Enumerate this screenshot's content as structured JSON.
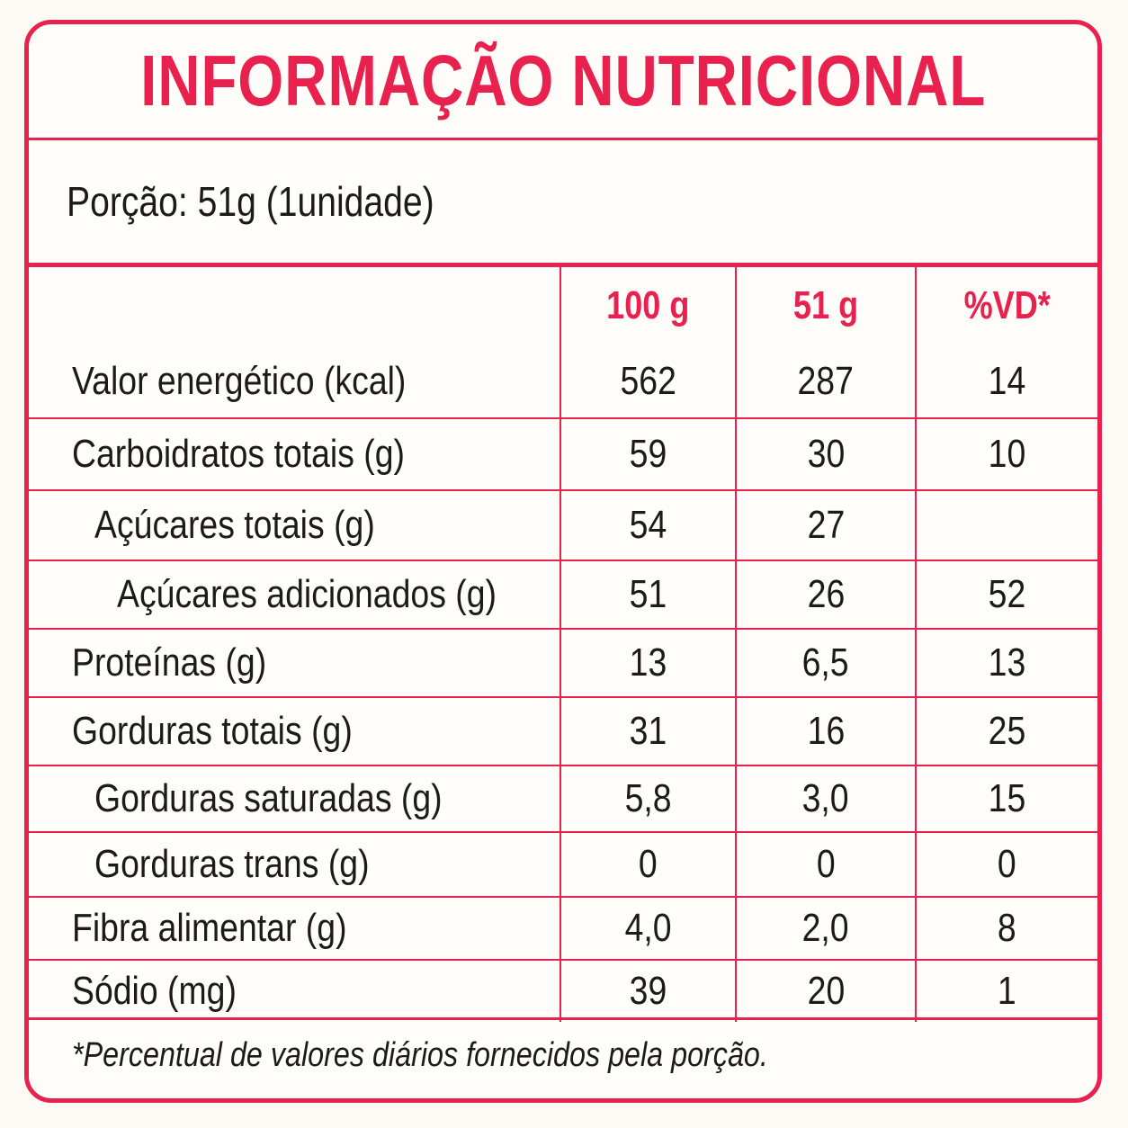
{
  "title": "INFORMAÇÃO NUTRICIONAL",
  "serving": "Porção: 51g (1unidade)",
  "headers": [
    "100 g",
    "51 g",
    "%VD*"
  ],
  "rows": [
    {
      "name": "Valor energético (kcal)",
      "per100": "562",
      "perServing": "287",
      "vd": "14",
      "indent": 0
    },
    {
      "name": "Carboidratos totais (g)",
      "per100": "59",
      "perServing": "30",
      "vd": "10",
      "indent": 0
    },
    {
      "name": "Açúcares totais (g)",
      "per100": "54",
      "perServing": "27",
      "vd": "",
      "indent": 1
    },
    {
      "name": "Açúcares adicionados (g)",
      "per100": "51",
      "perServing": "26",
      "vd": "52",
      "indent": 2
    },
    {
      "name": "Proteínas (g)",
      "per100": "13",
      "perServing": "6,5",
      "vd": "13",
      "indent": 0
    },
    {
      "name": "Gorduras totais (g)",
      "per100": "31",
      "perServing": "16",
      "vd": "25",
      "indent": 0
    },
    {
      "name": "Gorduras saturadas (g)",
      "per100": "5,8",
      "perServing": "3,0",
      "vd": "15",
      "indent": 1
    },
    {
      "name": "Gorduras trans (g)",
      "per100": "0",
      "perServing": "0",
      "vd": "0",
      "indent": 1
    },
    {
      "name": "Fibra alimentar (g)",
      "per100": "4,0",
      "perServing": "2,0",
      "vd": "8",
      "indent": 0
    },
    {
      "name": "Sódio (mg)",
      "per100": "39",
      "perServing": "20",
      "vd": "1",
      "indent": 0
    }
  ],
  "footnote": "*Percentual de valores diários fornecidos pela porção.",
  "colors": {
    "accent": "#e8214e",
    "text": "#1e1a1a",
    "background": "#fffdf9"
  }
}
